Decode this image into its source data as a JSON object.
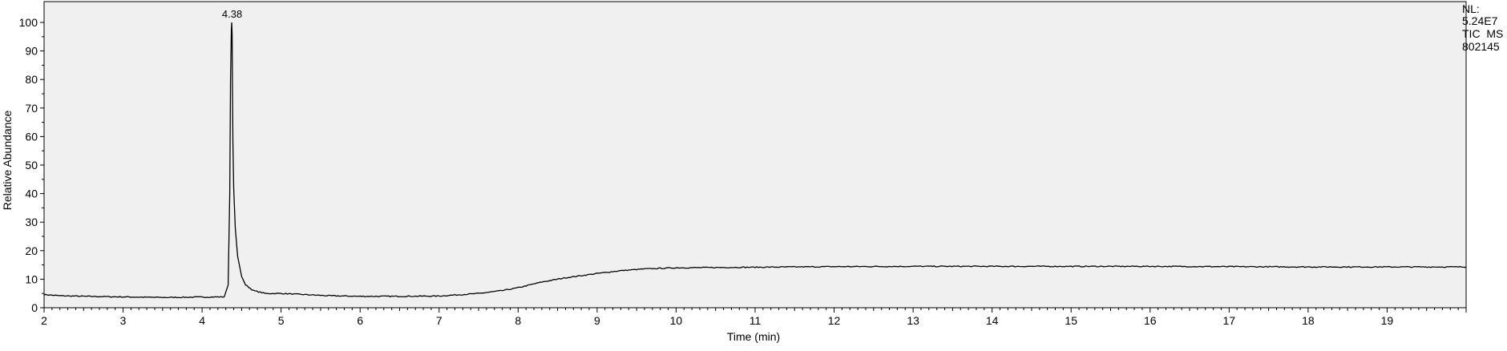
{
  "chart_data": {
    "type": "line",
    "title": "",
    "xlabel": "Time (min)",
    "ylabel": "Relative Abundance",
    "xlim": [
      2.0,
      20.0
    ],
    "ylim": [
      0,
      100
    ],
    "x_ticks": [
      2,
      3,
      4,
      5,
      6,
      7,
      8,
      9,
      10,
      11,
      12,
      13,
      14,
      15,
      16,
      17,
      18,
      19
    ],
    "y_ticks": [
      0,
      10,
      20,
      30,
      40,
      50,
      60,
      70,
      80,
      90,
      100
    ],
    "grid": false,
    "background_color": "#f0f0f0",
    "line_color": "#000000",
    "peak_annotations": [
      {
        "label": "4.38",
        "x": 4.38,
        "y": 100
      }
    ],
    "side_labels": [
      "NL:",
      "5.24E7",
      "TIC  MS",
      "802145"
    ],
    "series": [
      {
        "x": [
          2.0,
          2.2,
          2.5,
          3.0,
          3.5,
          3.9,
          4.28,
          4.33,
          4.35,
          4.36,
          4.37,
          4.375,
          4.38,
          4.385,
          4.39,
          4.4,
          4.42,
          4.45,
          4.5,
          4.55,
          4.65,
          4.8,
          5.0,
          5.3,
          5.6,
          6.0,
          6.5,
          7.0,
          7.5,
          7.8,
          8.0,
          8.3,
          8.6,
          9.0,
          9.3,
          9.6,
          10.0,
          11.0,
          12.0,
          13.0,
          14.0,
          15.0,
          16.0,
          17.0,
          18.0,
          19.0,
          20.0
        ],
        "y": [
          4.6,
          4.2,
          4.0,
          3.8,
          3.6,
          3.7,
          3.8,
          8.0,
          40.0,
          80.0,
          97.0,
          100.0,
          96.0,
          75.0,
          58.0,
          42.0,
          28.0,
          18.0,
          11.0,
          8.0,
          6.0,
          5.0,
          5.0,
          4.6,
          4.2,
          4.0,
          4.0,
          4.1,
          5.0,
          6.0,
          7.0,
          9.0,
          10.5,
          12.0,
          13.0,
          13.6,
          14.0,
          14.2,
          14.4,
          14.5,
          14.5,
          14.5,
          14.5,
          14.4,
          14.3,
          14.3,
          14.3
        ]
      }
    ]
  }
}
